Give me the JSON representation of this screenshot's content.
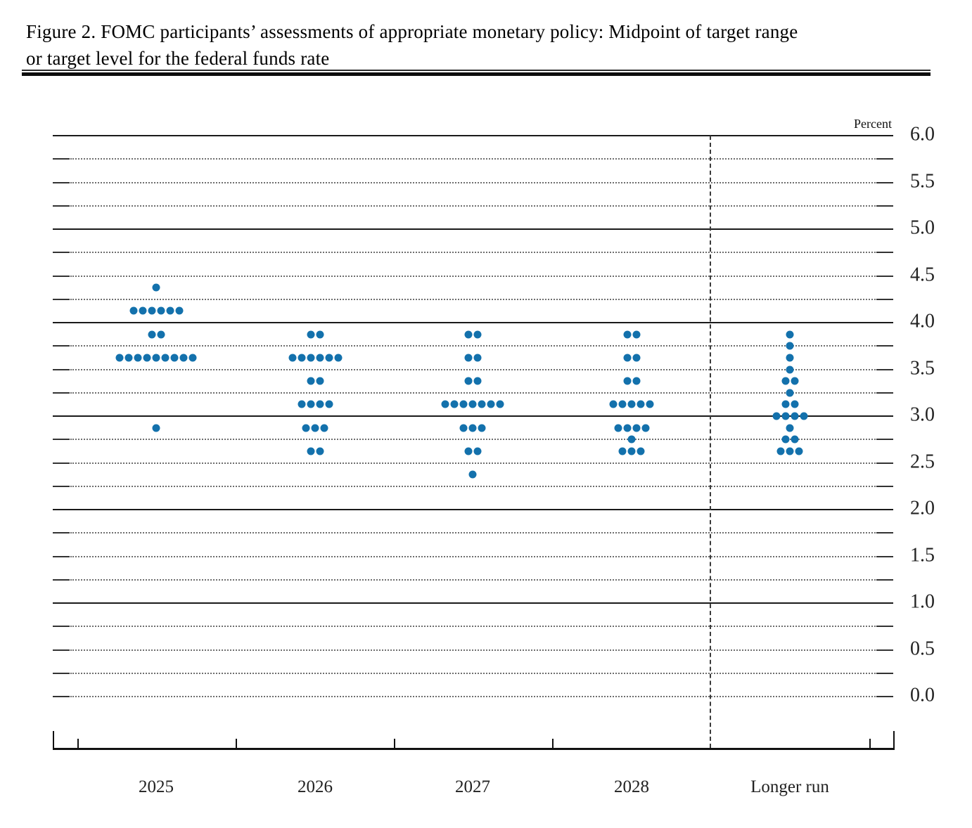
{
  "title": {
    "line1": "Figure 2. FOMC participants’ assessments of appropriate monetary policy: Midpoint of target range",
    "line2": "or target level for the federal funds rate"
  },
  "axis": {
    "unit_label": "Percent"
  },
  "colors": {
    "dot": "#1371ac",
    "solid_grid": "#1a1a1a",
    "dotted_grid": "#6e6e6e",
    "tick": "#333333",
    "text": "#222222"
  },
  "chart_data": {
    "type": "scatter",
    "title": "FOMC participants’ assessments of appropriate monetary policy: Midpoint of target range or target level for the federal funds rate",
    "xlabel": "",
    "ylabel": "Percent",
    "ylim": [
      0.0,
      6.0
    ],
    "ytick_interval": 0.5,
    "minor_grid_interval": 0.25,
    "grid": "solid lines at integers 1.0-6.0, dotted lines at other quarter-point levels, short edge ticks on dotted lines",
    "legend_position": "none",
    "separator": "vertical dashed line between 2028 and Longer run",
    "yticks": [
      "6.0",
      "5.5",
      "5.0",
      "4.5",
      "4.0",
      "3.5",
      "3.0",
      "2.5",
      "2.0",
      "1.5",
      "1.0",
      "0.5",
      "0.0"
    ],
    "categories": [
      "2025",
      "2026",
      "2027",
      "2028",
      "Longer run"
    ],
    "dots_per_category": 19,
    "series": [
      {
        "category": "2025",
        "dots": [
          {
            "rate": 4.375,
            "count": 1
          },
          {
            "rate": 4.125,
            "count": 6
          },
          {
            "rate": 3.875,
            "count": 2
          },
          {
            "rate": 3.625,
            "count": 9
          },
          {
            "rate": 2.875,
            "count": 1
          }
        ]
      },
      {
        "category": "2026",
        "dots": [
          {
            "rate": 3.875,
            "count": 2
          },
          {
            "rate": 3.625,
            "count": 6
          },
          {
            "rate": 3.375,
            "count": 2
          },
          {
            "rate": 3.125,
            "count": 4
          },
          {
            "rate": 2.875,
            "count": 3
          },
          {
            "rate": 2.625,
            "count": 2
          }
        ]
      },
      {
        "category": "2027",
        "dots": [
          {
            "rate": 3.875,
            "count": 2
          },
          {
            "rate": 3.625,
            "count": 2
          },
          {
            "rate": 3.375,
            "count": 2
          },
          {
            "rate": 3.125,
            "count": 7
          },
          {
            "rate": 2.875,
            "count": 3
          },
          {
            "rate": 2.625,
            "count": 2
          },
          {
            "rate": 2.375,
            "count": 1
          }
        ]
      },
      {
        "category": "2028",
        "dots": [
          {
            "rate": 3.875,
            "count": 2
          },
          {
            "rate": 3.625,
            "count": 2
          },
          {
            "rate": 3.375,
            "count": 2
          },
          {
            "rate": 3.125,
            "count": 5
          },
          {
            "rate": 2.875,
            "count": 4
          },
          {
            "rate": 2.75,
            "count": 1
          },
          {
            "rate": 2.625,
            "count": 3
          }
        ]
      },
      {
        "category": "Longer run",
        "dots": [
          {
            "rate": 3.875,
            "count": 1
          },
          {
            "rate": 3.75,
            "count": 1
          },
          {
            "rate": 3.625,
            "count": 1
          },
          {
            "rate": 3.5,
            "count": 1
          },
          {
            "rate": 3.375,
            "count": 2
          },
          {
            "rate": 3.25,
            "count": 1
          },
          {
            "rate": 3.125,
            "count": 2
          },
          {
            "rate": 3.0,
            "count": 4
          },
          {
            "rate": 2.875,
            "count": 1
          },
          {
            "rate": 2.75,
            "count": 2
          },
          {
            "rate": 2.625,
            "count": 3
          }
        ]
      }
    ]
  }
}
